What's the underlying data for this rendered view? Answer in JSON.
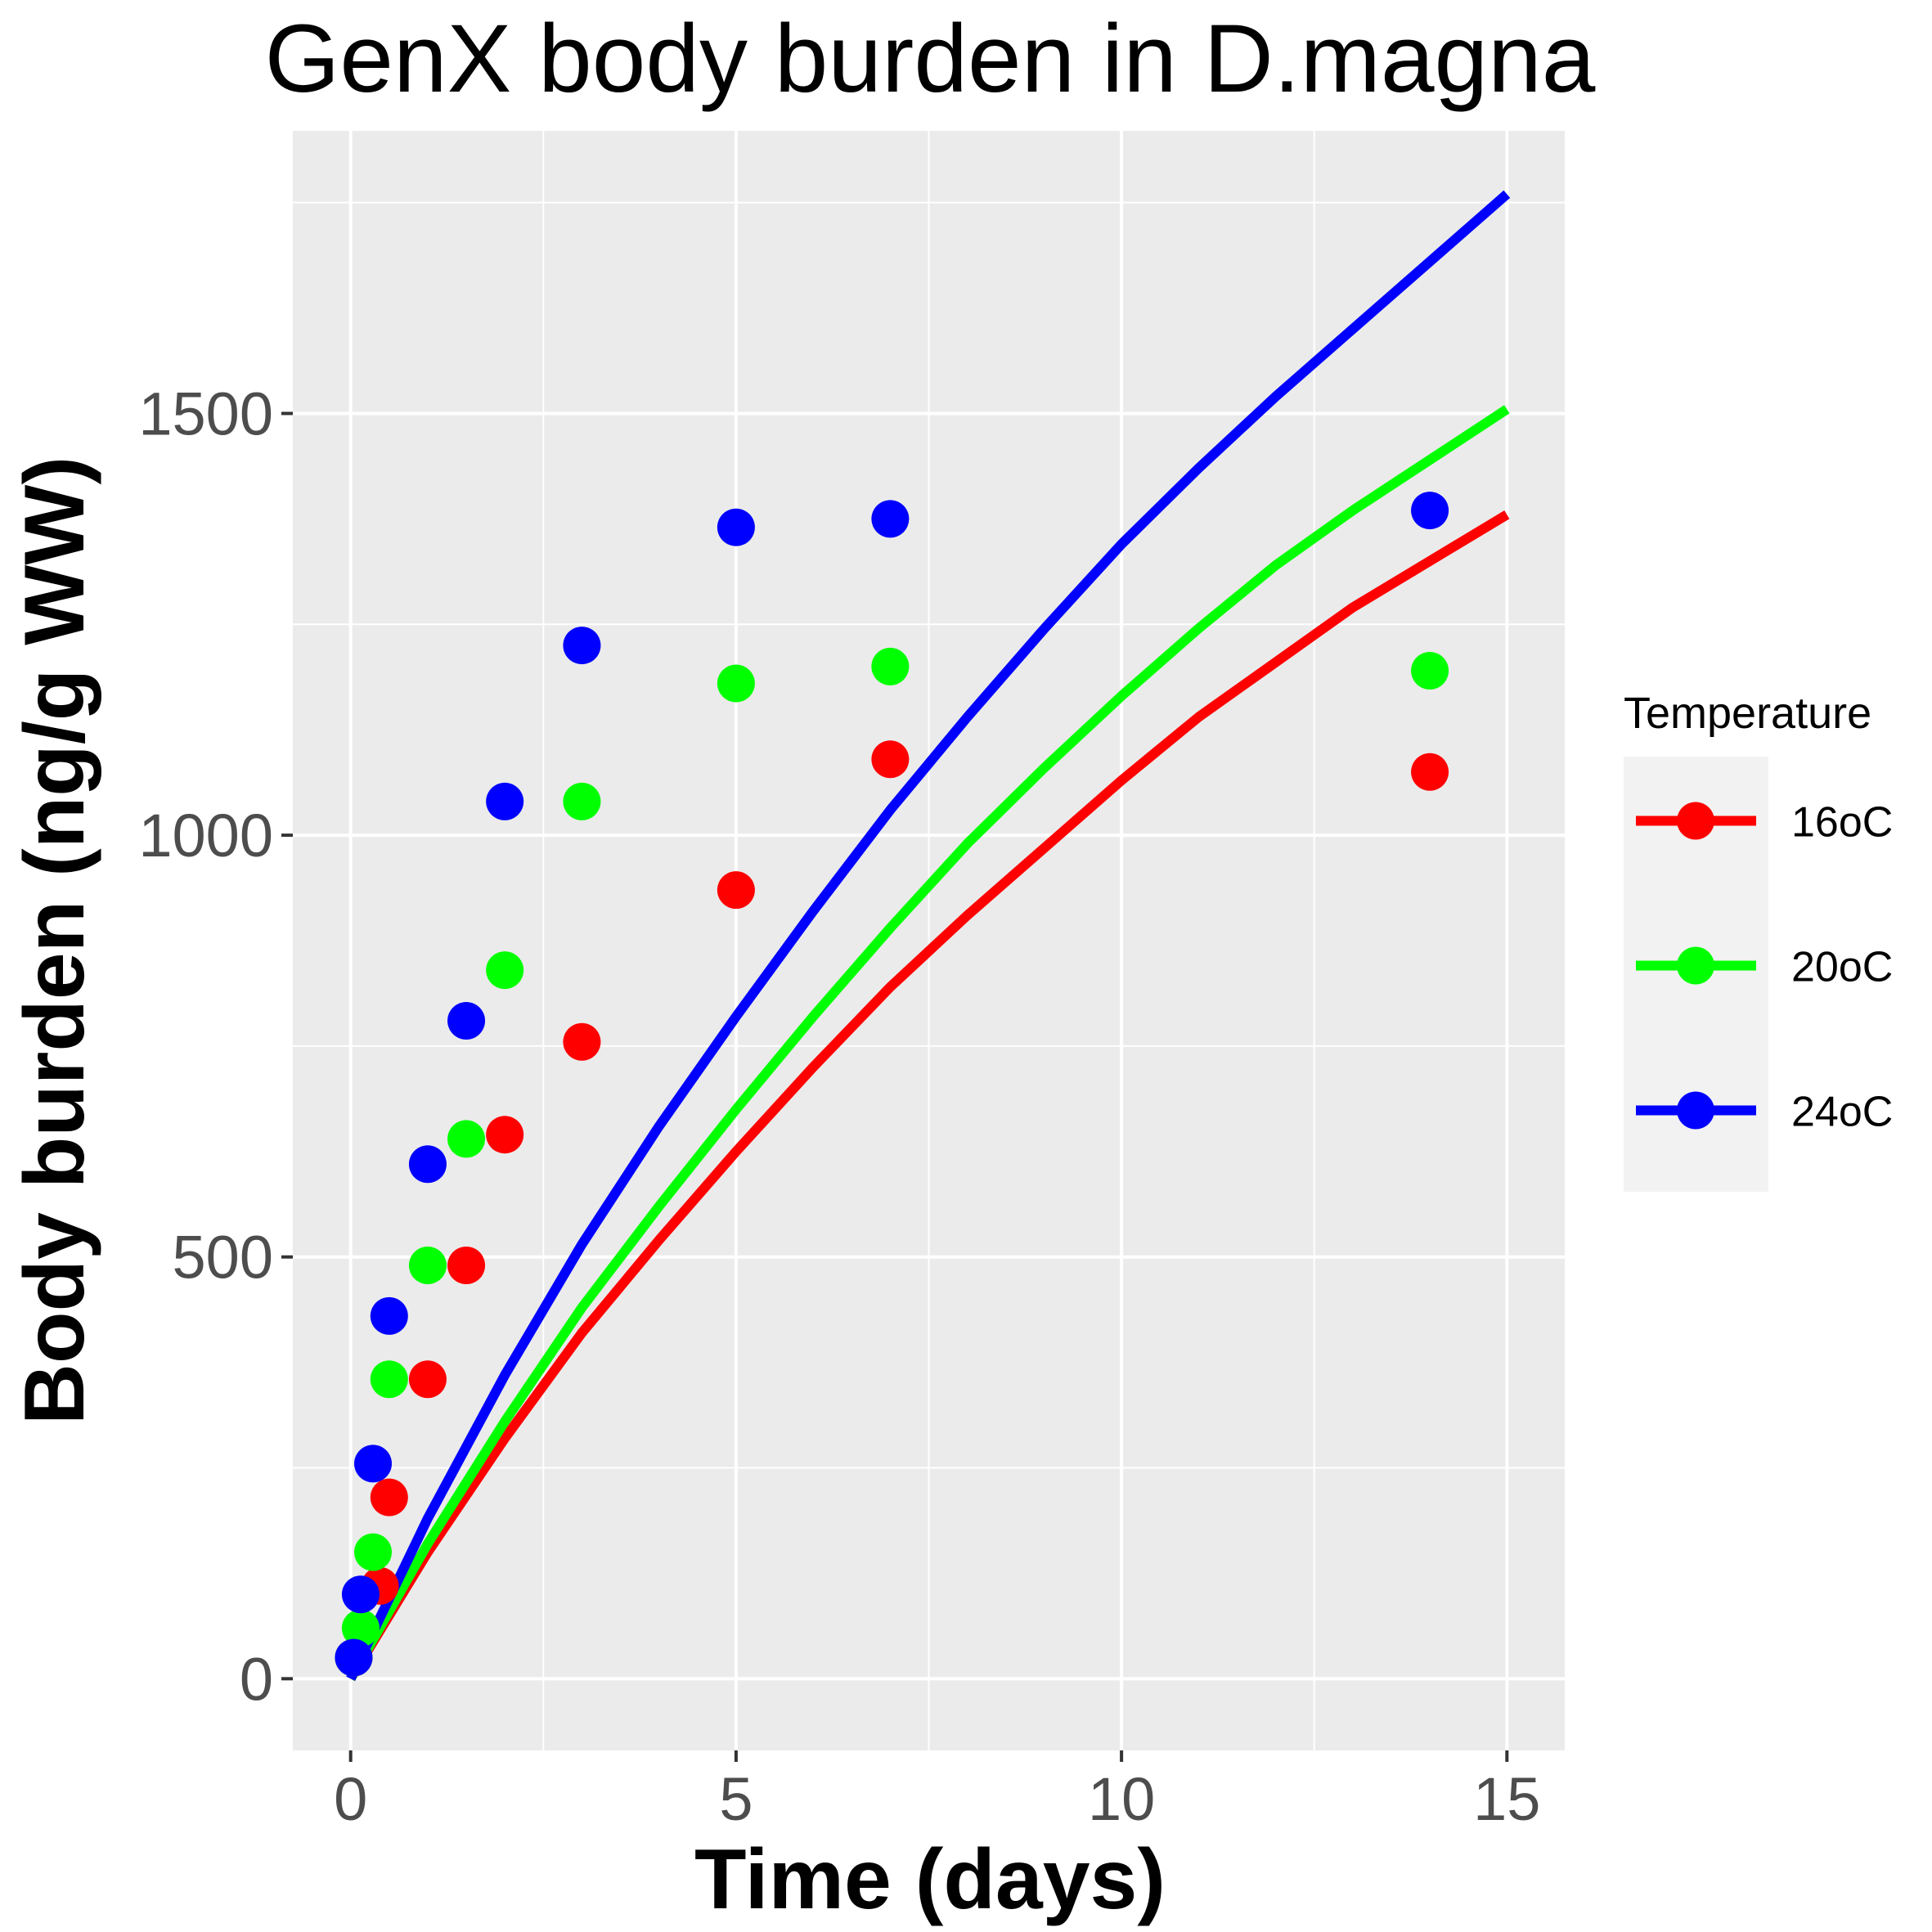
{
  "chart_data": {
    "type": "scatter",
    "title": "GenX body burden in D.magna",
    "xlabel": "Time (days)",
    "ylabel": "Body burden (ng/g WW)",
    "xlim": [
      -0.75,
      15.75
    ],
    "ylim": [
      -85,
      1835
    ],
    "x_ticks": [
      0,
      5,
      10,
      15
    ],
    "x_tick_labels": [
      "0",
      "5",
      "10",
      "15"
    ],
    "y_ticks": [
      0,
      500,
      1000,
      1500
    ],
    "y_tick_labels": [
      "0",
      "500",
      "1000",
      "1500"
    ],
    "grid": true,
    "legend_title": "Temperature",
    "legend_position": "right",
    "series": [
      {
        "name": "16oC",
        "color": "#ff0000",
        "points": {
          "x": [
            0.04,
            0.38,
            0.5,
            1,
            1.5,
            2,
            3,
            5,
            7,
            14
          ],
          "y": [
            25,
            110,
            215,
            355,
            490,
            645,
            755,
            935,
            1090,
            1075
          ]
        },
        "fit": {
          "x": [
            0,
            1,
            2,
            3,
            4,
            5,
            6,
            7,
            8,
            9,
            10,
            11,
            12,
            13,
            14,
            15
          ],
          "y": [
            0,
            150,
            285,
            410,
            520,
            625,
            725,
            820,
            905,
            985,
            1065,
            1140,
            1205,
            1270,
            1325,
            1380
          ]
        }
      },
      {
        "name": "20oC",
        "color": "#00ff00",
        "points": {
          "x": [
            0.04,
            0.13,
            0.29,
            0.5,
            1,
            1.5,
            2,
            3,
            5,
            7,
            14
          ],
          "y": [
            25,
            60,
            150,
            355,
            490,
            640,
            840,
            1040,
            1180,
            1200,
            1195
          ]
        },
        "fit": {
          "x": [
            0,
            1,
            2,
            3,
            4,
            5,
            6,
            7,
            8,
            9,
            10,
            11,
            12,
            13,
            14,
            15
          ],
          "y": [
            0,
            160,
            305,
            440,
            560,
            675,
            785,
            890,
            990,
            1080,
            1165,
            1245,
            1320,
            1385,
            1445,
            1505
          ]
        }
      },
      {
        "name": "24oC",
        "color": "#0000ff",
        "points": {
          "x": [
            0.04,
            0.13,
            0.29,
            0.5,
            1,
            1.5,
            2,
            3,
            5,
            7,
            14
          ],
          "y": [
            25,
            100,
            255,
            430,
            610,
            780,
            1040,
            1225,
            1365,
            1375,
            1385
          ]
        },
        "fit": {
          "x": [
            0,
            1,
            2,
            3,
            4,
            5,
            6,
            7,
            8,
            9,
            10,
            11,
            12,
            13,
            14,
            15
          ],
          "y": [
            0,
            190,
            360,
            515,
            655,
            785,
            910,
            1030,
            1140,
            1245,
            1345,
            1435,
            1520,
            1600,
            1680,
            1760
          ]
        }
      }
    ]
  }
}
